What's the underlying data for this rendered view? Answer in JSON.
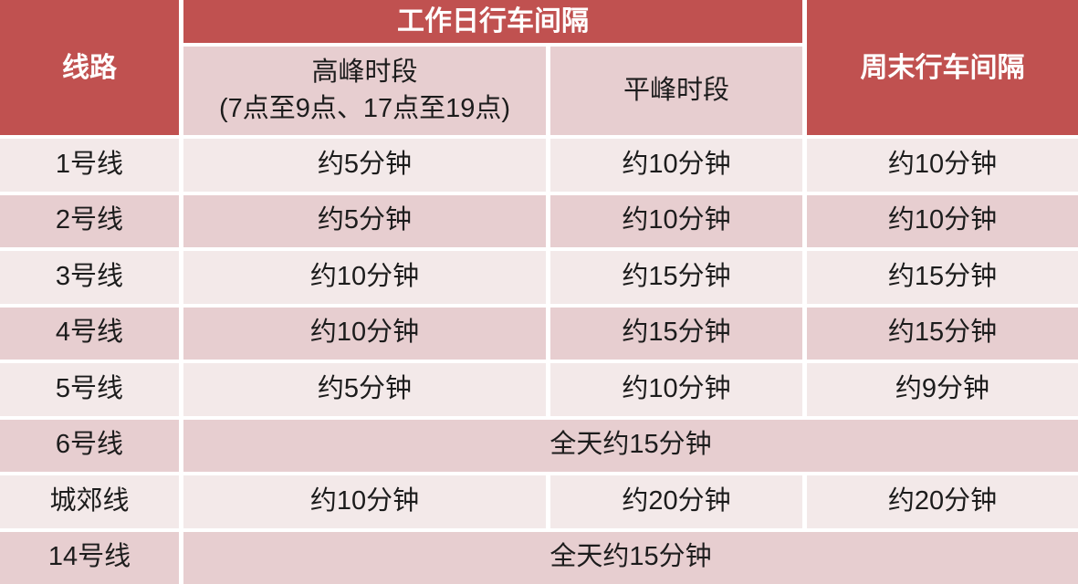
{
  "chart_data": {
    "type": "table",
    "header": {
      "line_col": "线路",
      "weekday_group": "工作日行车间隔",
      "peak_line1": "高峰时段",
      "peak_line2": "(7点至9点、17点至19点)",
      "offpeak": "平峰时段",
      "weekend": "周末行车间隔"
    },
    "rows": [
      {
        "line": "1号线",
        "peak": "约5分钟",
        "offpeak": "约10分钟",
        "weekend": "约10分钟"
      },
      {
        "line": "2号线",
        "peak": "约5分钟",
        "offpeak": "约10分钟",
        "weekend": "约10分钟"
      },
      {
        "line": "3号线",
        "peak": "约10分钟",
        "offpeak": "约15分钟",
        "weekend": "约15分钟"
      },
      {
        "line": "4号线",
        "peak": "约10分钟",
        "offpeak": "约15分钟",
        "weekend": "约15分钟"
      },
      {
        "line": "5号线",
        "peak": "约5分钟",
        "offpeak": "约10分钟",
        "weekend": "约9分钟"
      },
      {
        "line": "6号线",
        "all_day": "全天约15分钟"
      },
      {
        "line": "城郊线",
        "peak": "约10分钟",
        "offpeak": "约20分钟",
        "weekend": "约20分钟"
      },
      {
        "line": "14号线",
        "all_day": "全天约15分钟"
      }
    ]
  },
  "colors": {
    "header_red": "#c05150",
    "row_light": "#f3e9e9",
    "row_dark": "#e7ced0",
    "header_text": "#ffffff",
    "body_text": "#1c1c1c",
    "grid_gap": "#ffffff"
  }
}
